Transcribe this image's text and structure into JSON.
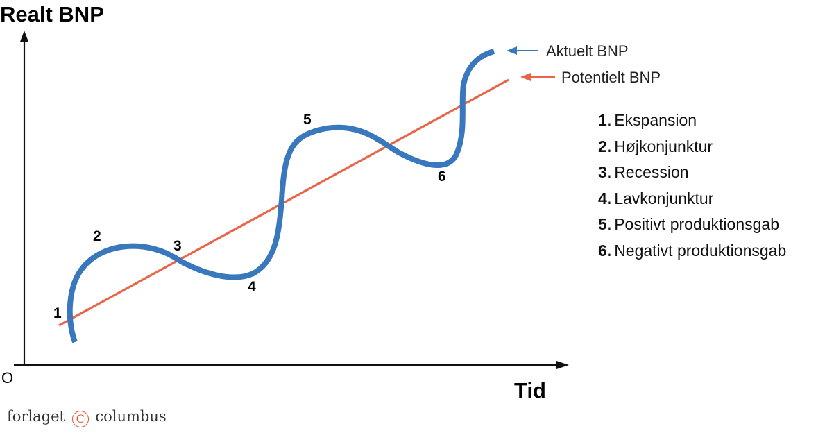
{
  "axes": {
    "y_label": "Realt BNP",
    "x_label": "Tid",
    "origin_label": "O"
  },
  "series": {
    "actual": {
      "label": "Aktuelt BNP",
      "color": "#3a78be"
    },
    "potential": {
      "label": "Potentielt BNP",
      "color": "#e8654a"
    }
  },
  "point_markers": [
    "1",
    "2",
    "3",
    "4",
    "5",
    "6"
  ],
  "legend": [
    {
      "num": "1.",
      "text": "Ekspansion"
    },
    {
      "num": "2.",
      "text": "Højkonjunktur"
    },
    {
      "num": "3.",
      "text": "Recession"
    },
    {
      "num": "4.",
      "text": "Lavkonjunktur"
    },
    {
      "num": "5.",
      "text": "Positivt produktionsgab"
    },
    {
      "num": "6.",
      "text": "Negativt produktionsgab"
    }
  ],
  "publisher": {
    "before": "forlaget",
    "mark": "C",
    "after": "columbus"
  }
}
